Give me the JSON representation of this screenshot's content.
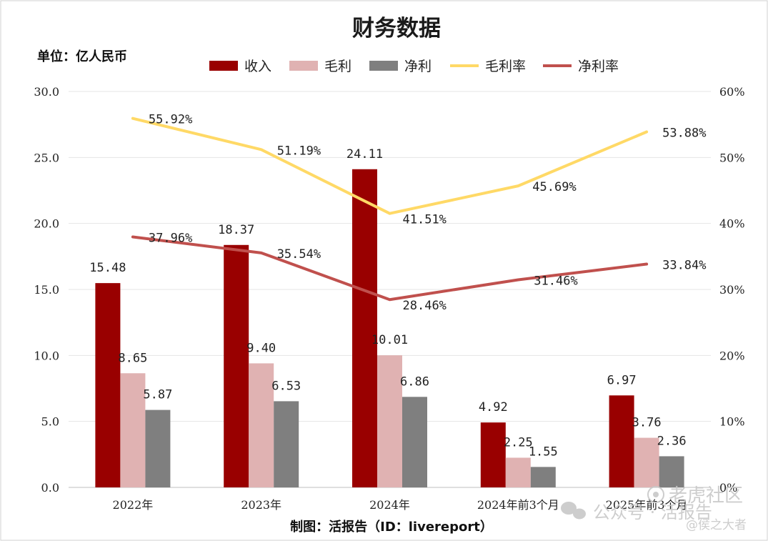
{
  "chart_data": {
    "type": "bar",
    "title": "财务数据",
    "unit_label": "单位：亿人民币",
    "categories": [
      "2022年",
      "2023年",
      "2024年",
      "2024年前3个月",
      "2025年前3个月"
    ],
    "series": [
      {
        "name": "收入",
        "kind": "bar",
        "axis": "left",
        "color": "#990000",
        "values": [
          15.48,
          18.37,
          24.11,
          4.92,
          6.97
        ],
        "labels": [
          "15.48",
          "18.37",
          "24.11",
          "4.92",
          "6.97"
        ]
      },
      {
        "name": "毛利",
        "kind": "bar",
        "axis": "left",
        "color": "#e0b2b2",
        "values": [
          8.65,
          9.4,
          10.01,
          2.25,
          3.76
        ],
        "labels": [
          "8.65",
          "9.40",
          "10.01",
          "2.25",
          "3.76"
        ]
      },
      {
        "name": "净利",
        "kind": "bar",
        "axis": "left",
        "color": "#7f7f7f",
        "values": [
          5.87,
          6.53,
          6.86,
          1.55,
          2.36
        ],
        "labels": [
          "5.87",
          "6.53",
          "6.86",
          "1.55",
          "2.36"
        ]
      },
      {
        "name": "毛利率",
        "kind": "line",
        "axis": "right",
        "color": "#ffd966",
        "values": [
          55.92,
          51.19,
          41.51,
          45.69,
          53.88
        ],
        "labels": [
          "55.92%",
          "51.19%",
          "41.51%",
          "45.69%",
          "53.88%"
        ]
      },
      {
        "name": "净利率",
        "kind": "line",
        "axis": "right",
        "color": "#c0504d",
        "values": [
          37.96,
          35.54,
          28.46,
          31.46,
          33.84
        ],
        "labels": [
          "37.96%",
          "35.54%",
          "28.46%",
          "31.46%",
          "33.84%"
        ]
      }
    ],
    "y_left": {
      "min": 0,
      "max": 30,
      "step": 5,
      "tick_labels": [
        "0.0",
        "5.0",
        "10.0",
        "15.0",
        "20.0",
        "25.0",
        "30.0"
      ]
    },
    "y_right": {
      "min": 0,
      "max": 60,
      "step": 10,
      "tick_labels": [
        "0%",
        "10%",
        "20%",
        "30%",
        "40%",
        "50%",
        "60%"
      ]
    },
    "legend_position": "top",
    "grid": true
  },
  "credit": "制图：活报告（ID：livereport）",
  "watermark": {
    "brand": "老虎社区",
    "account": "公众号 · 活报告",
    "user": "@侯之大者"
  }
}
